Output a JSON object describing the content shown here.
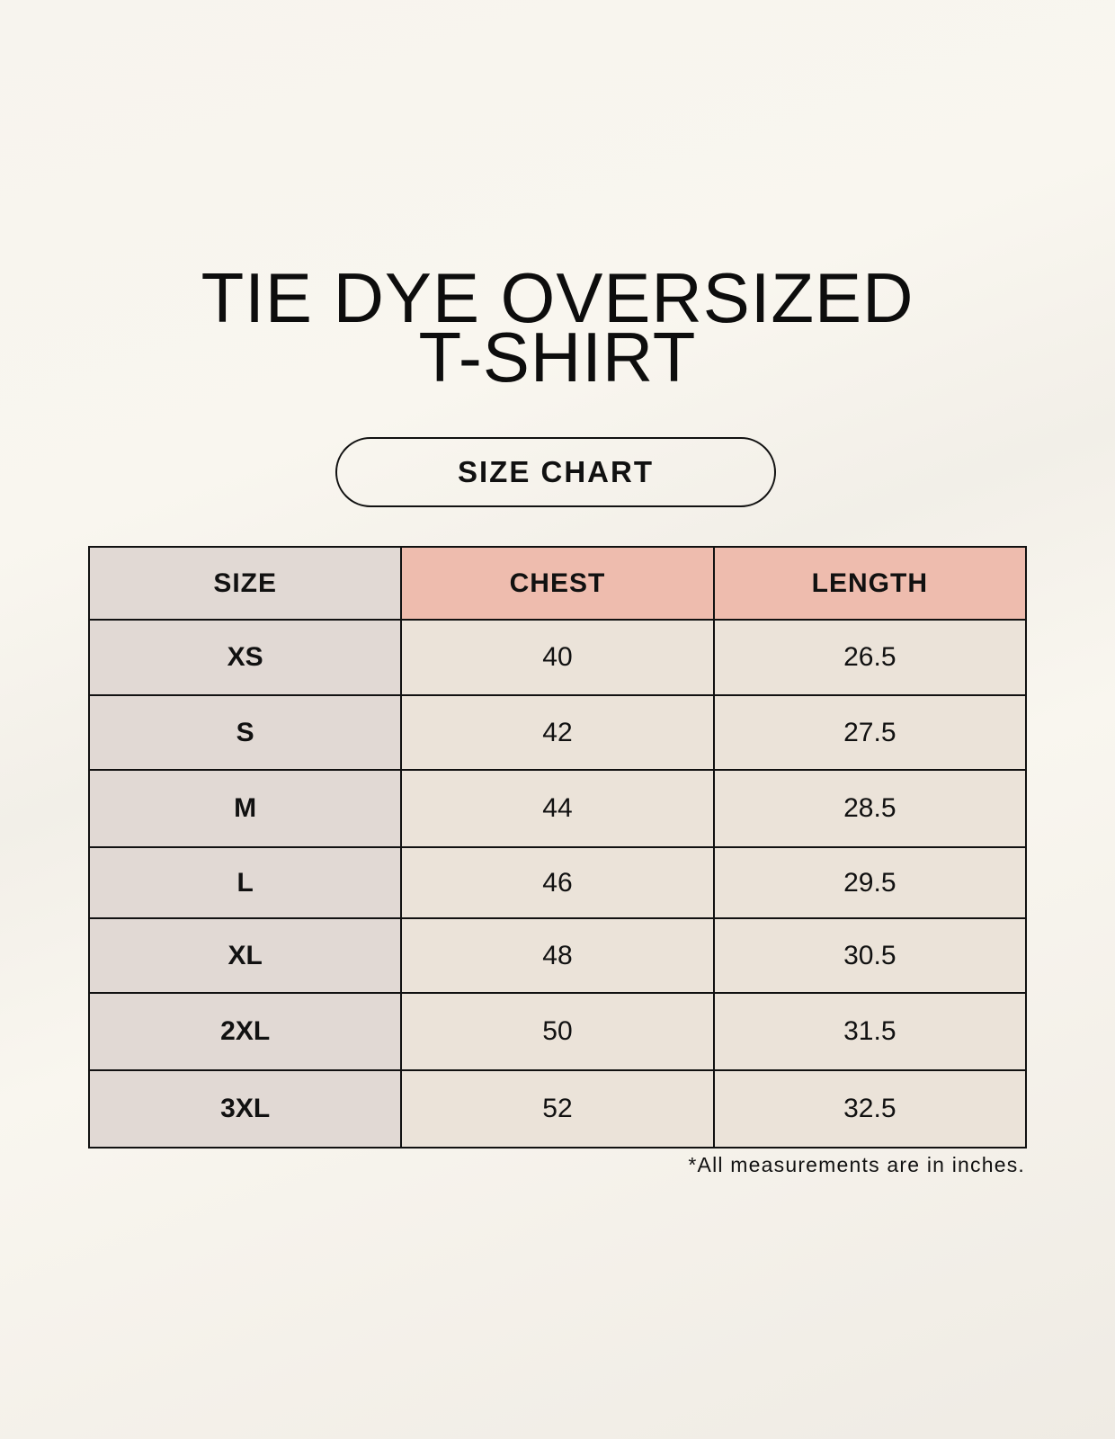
{
  "title": {
    "line1": "TIE DYE OVERSIZED",
    "line2": "T-SHIRT"
  },
  "subtitle": "SIZE CHART",
  "colors": {
    "size_column": "#e1d9d4",
    "header_accent": "#eebcae",
    "cell": "#ebe3d9"
  },
  "table": {
    "headers": [
      "SIZE",
      "CHEST",
      "LENGTH"
    ],
    "rows": [
      [
        "XS",
        "40",
        "26.5"
      ],
      [
        "S",
        "42",
        "27.5"
      ],
      [
        "M",
        "44",
        "28.5"
      ],
      [
        "L",
        "46",
        "29.5"
      ],
      [
        "XL",
        "48",
        "30.5"
      ],
      [
        "2XL",
        "50",
        "31.5"
      ],
      [
        "3XL",
        "52",
        "32.5"
      ]
    ]
  },
  "footnote": "*All measurements are in inches."
}
